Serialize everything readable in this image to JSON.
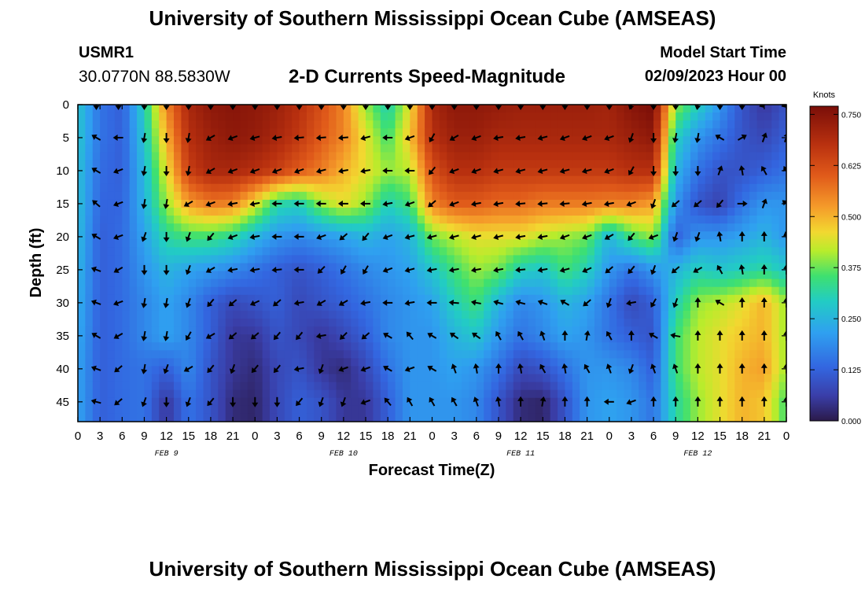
{
  "header": {
    "title": "University of Southern Mississippi Ocean Cube (AMSEAS)",
    "station_id": "USMR1",
    "station_coords": "30.0770N  88.5830W",
    "plot_title": "2-D Currents Speed-Magnitude",
    "start_label": "Model Start Time",
    "start_value": "02/09/2023 Hour 00"
  },
  "footer": {
    "title": "University of Southern Mississippi Ocean Cube (AMSEAS)"
  },
  "chart_data": {
    "type": "heatmap",
    "title": "2-D Currents Speed-Magnitude",
    "xlabel": "Forecast Time(Z)",
    "ylabel": "Depth (ft)",
    "x_ticks": [
      "0",
      "3",
      "6",
      "9",
      "12",
      "15",
      "18",
      "21",
      "0",
      "3",
      "6",
      "9",
      "12",
      "15",
      "18",
      "21",
      "0",
      "3",
      "6",
      "9",
      "12",
      "15",
      "18",
      "21",
      "0",
      "3",
      "6",
      "9",
      "12",
      "15",
      "18",
      "21",
      "0"
    ],
    "x_hours": [
      0,
      3,
      6,
      9,
      12,
      15,
      18,
      21,
      24,
      27,
      30,
      33,
      36,
      39,
      42,
      45,
      48,
      51,
      54,
      57,
      60,
      63,
      66,
      69,
      72,
      75,
      78,
      81,
      84,
      87,
      90,
      93,
      96
    ],
    "date_labels": [
      {
        "label": "FEB 9",
        "hour": 12
      },
      {
        "label": "FEB 10",
        "hour": 36
      },
      {
        "label": "FEB 11",
        "hour": 60
      },
      {
        "label": "FEB 12",
        "hour": 84
      }
    ],
    "y_ticks": [
      0,
      5,
      10,
      15,
      20,
      25,
      30,
      35,
      40,
      45
    ],
    "xlim": [
      0,
      96
    ],
    "ylim": [
      0,
      48
    ],
    "colorbar": {
      "label": "Knots",
      "ticks": [
        "0.000",
        "0.125",
        "0.250",
        "0.375",
        "0.500",
        "0.625",
        "0.750"
      ],
      "tick_values": [
        0,
        0.125,
        0.25,
        0.375,
        0.5,
        0.625,
        0.75
      ],
      "range": [
        0,
        0.77
      ]
    },
    "arrow_hours": [
      2.5,
      5.5,
      9,
      12,
      15,
      18,
      21,
      24,
      27,
      30,
      33,
      36,
      39,
      42,
      45,
      48,
      51,
      54,
      57,
      60,
      63,
      66,
      69,
      72,
      75,
      78,
      81,
      84,
      87,
      90,
      93,
      96
    ],
    "arrow_depths": [
      0,
      5,
      10,
      15,
      20,
      25,
      30,
      35,
      40,
      45
    ],
    "speed_grid_hours": [
      0,
      3,
      6,
      9,
      12,
      15,
      18,
      21,
      24,
      27,
      30,
      33,
      36,
      39,
      42,
      45,
      48,
      51,
      54,
      57,
      60,
      63,
      66,
      69,
      72,
      75,
      78,
      81,
      84,
      87,
      90,
      93,
      96
    ],
    "speed_grid_depths": [
      0,
      5,
      10,
      15,
      20,
      25,
      30,
      35,
      40,
      45,
      48
    ],
    "speed_knots": [
      [
        0.28,
        0.15,
        0.12,
        0.3,
        0.55,
        0.7,
        0.74,
        0.75,
        0.74,
        0.72,
        0.68,
        0.62,
        0.55,
        0.4,
        0.3,
        0.45,
        0.7,
        0.74,
        0.74,
        0.73,
        0.72,
        0.72,
        0.72,
        0.72,
        0.71,
        0.75,
        0.77,
        0.4,
        0.3,
        0.2,
        0.1,
        0.05,
        0.1
      ],
      [
        0.28,
        0.15,
        0.12,
        0.28,
        0.5,
        0.68,
        0.72,
        0.74,
        0.73,
        0.7,
        0.66,
        0.6,
        0.55,
        0.45,
        0.35,
        0.48,
        0.68,
        0.72,
        0.72,
        0.7,
        0.7,
        0.7,
        0.7,
        0.7,
        0.7,
        0.72,
        0.74,
        0.3,
        0.2,
        0.15,
        0.1,
        0.08,
        0.12
      ],
      [
        0.27,
        0.14,
        0.12,
        0.26,
        0.45,
        0.65,
        0.7,
        0.7,
        0.68,
        0.65,
        0.6,
        0.56,
        0.5,
        0.45,
        0.4,
        0.42,
        0.62,
        0.68,
        0.68,
        0.66,
        0.66,
        0.66,
        0.66,
        0.66,
        0.66,
        0.68,
        0.68,
        0.25,
        0.15,
        0.1,
        0.1,
        0.12,
        0.15
      ],
      [
        0.27,
        0.13,
        0.13,
        0.25,
        0.4,
        0.52,
        0.56,
        0.55,
        0.45,
        0.32,
        0.3,
        0.4,
        0.45,
        0.4,
        0.3,
        0.35,
        0.55,
        0.6,
        0.6,
        0.58,
        0.58,
        0.56,
        0.56,
        0.56,
        0.55,
        0.55,
        0.52,
        0.2,
        0.1,
        0.07,
        0.15,
        0.2,
        0.2
      ],
      [
        0.26,
        0.12,
        0.14,
        0.22,
        0.32,
        0.35,
        0.35,
        0.32,
        0.25,
        0.2,
        0.18,
        0.2,
        0.22,
        0.25,
        0.22,
        0.25,
        0.38,
        0.42,
        0.45,
        0.45,
        0.45,
        0.42,
        0.4,
        0.38,
        0.25,
        0.35,
        0.4,
        0.12,
        0.2,
        0.2,
        0.22,
        0.25,
        0.2
      ],
      [
        0.25,
        0.12,
        0.14,
        0.2,
        0.25,
        0.22,
        0.2,
        0.18,
        0.15,
        0.12,
        0.1,
        0.12,
        0.15,
        0.18,
        0.2,
        0.22,
        0.28,
        0.35,
        0.4,
        0.38,
        0.3,
        0.28,
        0.35,
        0.3,
        0.2,
        0.15,
        0.2,
        0.25,
        0.3,
        0.28,
        0.3,
        0.32,
        0.28
      ],
      [
        0.24,
        0.12,
        0.14,
        0.18,
        0.22,
        0.18,
        0.12,
        0.08,
        0.1,
        0.12,
        0.08,
        0.1,
        0.12,
        0.15,
        0.18,
        0.2,
        0.22,
        0.3,
        0.35,
        0.25,
        0.18,
        0.2,
        0.25,
        0.22,
        0.15,
        0.08,
        0.12,
        0.3,
        0.4,
        0.42,
        0.45,
        0.5,
        0.4
      ],
      [
        0.23,
        0.12,
        0.14,
        0.18,
        0.22,
        0.18,
        0.12,
        0.05,
        0.05,
        0.1,
        0.08,
        0.05,
        0.08,
        0.12,
        0.18,
        0.2,
        0.2,
        0.25,
        0.28,
        0.2,
        0.15,
        0.18,
        0.22,
        0.2,
        0.15,
        0.12,
        0.1,
        0.35,
        0.42,
        0.45,
        0.48,
        0.5,
        0.4
      ],
      [
        0.22,
        0.12,
        0.14,
        0.15,
        0.12,
        0.18,
        0.1,
        0.05,
        0.03,
        0.08,
        0.1,
        0.05,
        0.03,
        0.08,
        0.15,
        0.2,
        0.2,
        0.22,
        0.2,
        0.15,
        0.08,
        0.1,
        0.15,
        0.2,
        0.2,
        0.18,
        0.12,
        0.35,
        0.42,
        0.45,
        0.5,
        0.52,
        0.4
      ],
      [
        0.22,
        0.12,
        0.14,
        0.15,
        0.05,
        0.15,
        0.1,
        0.03,
        0.02,
        0.08,
        0.12,
        0.1,
        0.05,
        0.05,
        0.12,
        0.2,
        0.2,
        0.2,
        0.18,
        0.1,
        0.03,
        0.02,
        0.1,
        0.2,
        0.22,
        0.2,
        0.15,
        0.32,
        0.4,
        0.45,
        0.5,
        0.48,
        0.35
      ],
      [
        0.22,
        0.12,
        0.14,
        0.15,
        0.05,
        0.15,
        0.1,
        0.03,
        0.02,
        0.08,
        0.12,
        0.1,
        0.05,
        0.05,
        0.12,
        0.2,
        0.2,
        0.2,
        0.18,
        0.1,
        0.03,
        0.02,
        0.1,
        0.2,
        0.22,
        0.2,
        0.15,
        0.32,
        0.4,
        0.45,
        0.5,
        0.48,
        0.35
      ]
    ],
    "directions_deg": [
      [
        180,
        180,
        180,
        180,
        180,
        180,
        180,
        180,
        180,
        180,
        180,
        180,
        180,
        180,
        180,
        180,
        180,
        180,
        180,
        180,
        180,
        180,
        180,
        180,
        200,
        180,
        180,
        190,
        180,
        180,
        250,
        250
      ],
      [
        300,
        270,
        190,
        180,
        190,
        240,
        250,
        255,
        260,
        265,
        265,
        265,
        255,
        270,
        250,
        210,
        240,
        250,
        260,
        260,
        255,
        250,
        250,
        250,
        200,
        180,
        190,
        190,
        300,
        60,
        20,
        20
      ],
      [
        300,
        250,
        190,
        180,
        190,
        240,
        250,
        250,
        250,
        250,
        255,
        260,
        260,
        270,
        270,
        220,
        250,
        250,
        255,
        255,
        255,
        255,
        255,
        250,
        210,
        180,
        180,
        180,
        20,
        350,
        330,
        330
      ],
      [
        310,
        250,
        190,
        190,
        240,
        250,
        260,
        260,
        270,
        270,
        270,
        270,
        270,
        260,
        250,
        230,
        250,
        260,
        260,
        265,
        265,
        265,
        260,
        260,
        250,
        200,
        230,
        230,
        220,
        90,
        20,
        310
      ],
      [
        300,
        250,
        200,
        180,
        200,
        220,
        250,
        260,
        270,
        270,
        250,
        230,
        220,
        250,
        255,
        255,
        255,
        255,
        255,
        260,
        260,
        250,
        250,
        240,
        220,
        250,
        200,
        200,
        350,
        0,
        360,
        350
      ],
      [
        290,
        240,
        180,
        180,
        200,
        240,
        260,
        260,
        265,
        270,
        225,
        210,
        210,
        250,
        255,
        260,
        260,
        260,
        260,
        265,
        260,
        255,
        245,
        230,
        220,
        200,
        230,
        240,
        330,
        350,
        0,
        360
      ],
      [
        290,
        250,
        190,
        190,
        200,
        220,
        230,
        245,
        230,
        260,
        240,
        240,
        260,
        270,
        260,
        270,
        275,
        280,
        285,
        285,
        290,
        300,
        230,
        200,
        260,
        210,
        200,
        360,
        300,
        360,
        0,
        0
      ],
      [
        300,
        240,
        190,
        190,
        210,
        240,
        230,
        230,
        220,
        220,
        260,
        225,
        230,
        300,
        320,
        300,
        305,
        305,
        330,
        330,
        340,
        0,
        10,
        330,
        0,
        300,
        280,
        0,
        0,
        0,
        0,
        360
      ],
      [
        290,
        230,
        190,
        200,
        240,
        220,
        200,
        220,
        220,
        260,
        200,
        250,
        250,
        300,
        250,
        300,
        340,
        350,
        0,
        350,
        330,
        350,
        330,
        340,
        200,
        340,
        340,
        0,
        0,
        0,
        0,
        360
      ],
      [
        285,
        230,
        200,
        180,
        200,
        220,
        180,
        180,
        180,
        220,
        200,
        200,
        250,
        320,
        330,
        330,
        330,
        340,
        350,
        0,
        10,
        0,
        0,
        270,
        250,
        0,
        0,
        0,
        0,
        0,
        0,
        360
      ]
    ]
  }
}
